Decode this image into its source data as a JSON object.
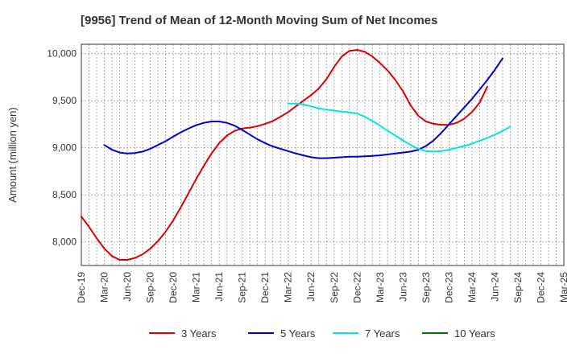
{
  "chart_data": {
    "type": "line",
    "title": "[9956]  Trend of Mean of 12-Month Moving Sum of Net Incomes",
    "ylabel": "Amount (million yen)",
    "xlabel": "",
    "ylim": [
      7750,
      10100
    ],
    "yticks": [
      8000,
      8500,
      9000,
      9500,
      10000
    ],
    "ytick_labels": [
      "8,000",
      "8,500",
      "9,000",
      "9,500",
      "10,000"
    ],
    "x_tick_labels": [
      "Dec-19",
      "Mar-20",
      "Jun-20",
      "Sep-20",
      "Dec-20",
      "Mar-21",
      "Jun-21",
      "Sep-21",
      "Dec-21",
      "Mar-22",
      "Jun-22",
      "Sep-22",
      "Dec-22",
      "Mar-23",
      "Jun-23",
      "Sep-23",
      "Dec-23",
      "Mar-24",
      "Jun-24",
      "Sep-24",
      "Dec-24",
      "Mar-25"
    ],
    "grid": true,
    "legend_position": "bottom",
    "series": [
      {
        "name": "3 Years",
        "color": "#dd0000",
        "points": [
          [
            "Dec-19",
            8270
          ],
          [
            "Jan-20",
            8160
          ],
          [
            "Feb-20",
            8040
          ],
          [
            "Mar-20",
            7930
          ],
          [
            "Apr-20",
            7850
          ],
          [
            "May-20",
            7810
          ],
          [
            "Jun-20",
            7810
          ],
          [
            "Jul-20",
            7830
          ],
          [
            "Aug-20",
            7870
          ],
          [
            "Sep-20",
            7930
          ],
          [
            "Oct-20",
            8010
          ],
          [
            "Nov-20",
            8110
          ],
          [
            "Dec-20",
            8230
          ],
          [
            "Jan-21",
            8370
          ],
          [
            "Feb-21",
            8520
          ],
          [
            "Mar-21",
            8670
          ],
          [
            "Apr-21",
            8810
          ],
          [
            "May-21",
            8940
          ],
          [
            "Jun-21",
            9050
          ],
          [
            "Jul-21",
            9130
          ],
          [
            "Aug-21",
            9180
          ],
          [
            "Sep-21",
            9205
          ],
          [
            "Oct-21",
            9215
          ],
          [
            "Nov-21",
            9230
          ],
          [
            "Dec-21",
            9255
          ],
          [
            "Jan-22",
            9285
          ],
          [
            "Feb-22",
            9330
          ],
          [
            "Mar-22",
            9380
          ],
          [
            "Apr-22",
            9440
          ],
          [
            "May-22",
            9500
          ],
          [
            "Jun-22",
            9560
          ],
          [
            "Jul-22",
            9630
          ],
          [
            "Aug-22",
            9730
          ],
          [
            "Sep-22",
            9860
          ],
          [
            "Oct-22",
            9970
          ],
          [
            "Nov-22",
            10030
          ],
          [
            "Dec-22",
            10040
          ],
          [
            "Jan-23",
            10020
          ],
          [
            "Feb-23",
            9970
          ],
          [
            "Mar-23",
            9900
          ],
          [
            "Apr-23",
            9820
          ],
          [
            "May-23",
            9720
          ],
          [
            "Jun-23",
            9600
          ],
          [
            "Jul-23",
            9450
          ],
          [
            "Aug-23",
            9340
          ],
          [
            "Sep-23",
            9280
          ],
          [
            "Oct-23",
            9255
          ],
          [
            "Nov-23",
            9245
          ],
          [
            "Dec-23",
            9245
          ],
          [
            "Jan-24",
            9265
          ],
          [
            "Feb-24",
            9310
          ],
          [
            "Mar-24",
            9380
          ],
          [
            "Apr-24",
            9480
          ],
          [
            "May-24",
            9650
          ]
        ]
      },
      {
        "name": "5 Years",
        "color": "#0000cc",
        "points": [
          [
            "Mar-20",
            9030
          ],
          [
            "Apr-20",
            8980
          ],
          [
            "May-20",
            8950
          ],
          [
            "Jun-20",
            8940
          ],
          [
            "Jul-20",
            8945
          ],
          [
            "Aug-20",
            8960
          ],
          [
            "Sep-20",
            8990
          ],
          [
            "Oct-20",
            9030
          ],
          [
            "Nov-20",
            9070
          ],
          [
            "Dec-20",
            9120
          ],
          [
            "Jan-21",
            9165
          ],
          [
            "Feb-21",
            9205
          ],
          [
            "Mar-21",
            9240
          ],
          [
            "Apr-21",
            9265
          ],
          [
            "May-21",
            9280
          ],
          [
            "Jun-21",
            9280
          ],
          [
            "Jul-21",
            9265
          ],
          [
            "Aug-21",
            9235
          ],
          [
            "Sep-21",
            9190
          ],
          [
            "Oct-21",
            9140
          ],
          [
            "Nov-21",
            9090
          ],
          [
            "Dec-21",
            9050
          ],
          [
            "Jan-22",
            9015
          ],
          [
            "Feb-22",
            8990
          ],
          [
            "Mar-22",
            8965
          ],
          [
            "Apr-22",
            8940
          ],
          [
            "May-22",
            8920
          ],
          [
            "Jun-22",
            8900
          ],
          [
            "Jul-22",
            8890
          ],
          [
            "Aug-22",
            8890
          ],
          [
            "Sep-22",
            8895
          ],
          [
            "Oct-22",
            8900
          ],
          [
            "Nov-22",
            8905
          ],
          [
            "Dec-22",
            8905
          ],
          [
            "Jan-23",
            8910
          ],
          [
            "Feb-23",
            8915
          ],
          [
            "Mar-23",
            8920
          ],
          [
            "Apr-23",
            8930
          ],
          [
            "May-23",
            8940
          ],
          [
            "Jun-23",
            8950
          ],
          [
            "Jul-23",
            8960
          ],
          [
            "Aug-23",
            8980
          ],
          [
            "Sep-23",
            9020
          ],
          [
            "Oct-23",
            9080
          ],
          [
            "Nov-23",
            9160
          ],
          [
            "Dec-23",
            9250
          ],
          [
            "Jan-24",
            9340
          ],
          [
            "Feb-24",
            9430
          ],
          [
            "Mar-24",
            9520
          ],
          [
            "Apr-24",
            9620
          ],
          [
            "May-24",
            9720
          ],
          [
            "Jun-24",
            9830
          ],
          [
            "Jul-24",
            9950
          ]
        ]
      },
      {
        "name": "7 Years",
        "color": "#00e6e6",
        "points": [
          [
            "Mar-22",
            9470
          ],
          [
            "Apr-22",
            9470
          ],
          [
            "May-22",
            9460
          ],
          [
            "Jun-22",
            9440
          ],
          [
            "Jul-22",
            9420
          ],
          [
            "Aug-22",
            9405
          ],
          [
            "Sep-22",
            9395
          ],
          [
            "Oct-22",
            9385
          ],
          [
            "Nov-22",
            9375
          ],
          [
            "Dec-22",
            9365
          ],
          [
            "Jan-23",
            9330
          ],
          [
            "Feb-23",
            9285
          ],
          [
            "Mar-23",
            9235
          ],
          [
            "Apr-23",
            9180
          ],
          [
            "May-23",
            9130
          ],
          [
            "Jun-23",
            9080
          ],
          [
            "Jul-23",
            9030
          ],
          [
            "Aug-23",
            8990
          ],
          [
            "Sep-23",
            8965
          ],
          [
            "Oct-23",
            8960
          ],
          [
            "Nov-23",
            8965
          ],
          [
            "Dec-23",
            8980
          ],
          [
            "Jan-24",
            9000
          ],
          [
            "Feb-24",
            9020
          ],
          [
            "Mar-24",
            9045
          ],
          [
            "Apr-24",
            9075
          ],
          [
            "May-24",
            9105
          ],
          [
            "Jun-24",
            9140
          ],
          [
            "Jul-24",
            9180
          ],
          [
            "Aug-24",
            9225
          ]
        ]
      },
      {
        "name": "10 Years",
        "color": "#007700",
        "points": []
      }
    ]
  }
}
